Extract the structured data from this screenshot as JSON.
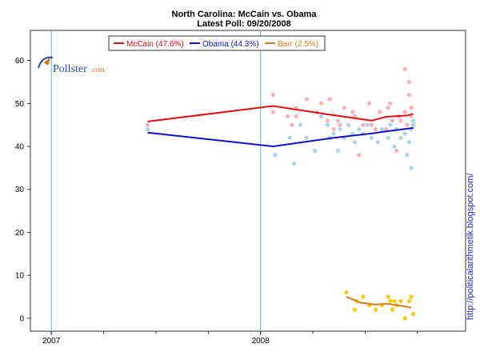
{
  "chart_data": {
    "type": "scatter",
    "title": "North Carolina: McCain vs. Obama",
    "subtitle": "Latest Poll: 09/20/2008",
    "xlabel": "",
    "ylabel": "",
    "xlim": [
      2006.9,
      2008.98
    ],
    "ylim": [
      -3,
      67
    ],
    "y_ticks": [
      0,
      10,
      20,
      30,
      40,
      50,
      60
    ],
    "x_ticks": [
      {
        "value": 2007.0,
        "label": "2007"
      },
      {
        "value": 2008.0,
        "label": "2008"
      }
    ],
    "vlines": [
      2007.0,
      2008.0
    ],
    "minor_x_ticks": [
      2007.0,
      2007.25,
      2007.5,
      2007.75,
      2008.0,
      2008.25,
      2008.5,
      2008.75
    ],
    "legend_placement": "top-center",
    "series": [
      {
        "name": "McCain",
        "legend_label": "McCain (47.6%)",
        "line_color": "#dd1111",
        "point_color": "#f4b3bb",
        "trend": {
          "x": [
            2007.46,
            2008.06,
            2008.33,
            2008.53,
            2008.6,
            2008.7,
            2008.73
          ],
          "y": [
            45.8,
            49.4,
            47.4,
            46.0,
            46.9,
            47.2,
            47.6
          ]
        },
        "points": {
          "x": [
            2007.46,
            2008.06,
            2008.06,
            2008.13,
            2008.15,
            2008.17,
            2008.17,
            2008.22,
            2008.27,
            2008.29,
            2008.32,
            2008.33,
            2008.35,
            2008.37,
            2008.38,
            2008.4,
            2008.42,
            2008.44,
            2008.45,
            2008.47,
            2008.49,
            2008.52,
            2008.53,
            2008.55,
            2008.57,
            2008.6,
            2008.61,
            2008.62,
            2008.63,
            2008.65,
            2008.66,
            2008.67,
            2008.69,
            2008.69,
            2008.7,
            2008.71,
            2008.71,
            2008.72,
            2008.72,
            2008.73,
            2008.73
          ],
          "y": [
            45,
            52,
            48,
            47,
            45,
            47,
            49,
            51,
            48,
            50,
            46,
            51,
            44,
            46,
            45,
            49,
            45,
            48,
            47,
            38,
            45,
            50,
            45,
            44,
            48,
            44,
            49,
            50,
            46,
            39,
            47,
            46,
            58,
            48,
            45,
            52,
            55,
            49,
            47,
            45,
            46
          ]
        }
      },
      {
        "name": "Obama",
        "legend_label": "Obama (44.3%)",
        "line_color": "#1111cc",
        "point_color": "#a9d5e6",
        "trend": {
          "x": [
            2007.46,
            2008.06,
            2008.35,
            2008.53,
            2008.6,
            2008.73
          ],
          "y": [
            43.2,
            40.0,
            42.0,
            43.0,
            43.5,
            44.3
          ]
        },
        "points": {
          "x": [
            2007.46,
            2008.07,
            2008.14,
            2008.16,
            2008.19,
            2008.22,
            2008.26,
            2008.29,
            2008.32,
            2008.33,
            2008.35,
            2008.37,
            2008.38,
            2008.4,
            2008.42,
            2008.44,
            2008.45,
            2008.47,
            2008.49,
            2008.51,
            2008.53,
            2008.56,
            2008.58,
            2008.61,
            2008.62,
            2008.64,
            2008.65,
            2008.67,
            2008.69,
            2008.7,
            2008.71,
            2008.72,
            2008.72,
            2008.73,
            2008.73
          ],
          "y": [
            44,
            38,
            42,
            36,
            45,
            42,
            39,
            47,
            45,
            42,
            43,
            39,
            44,
            42,
            45,
            43,
            41,
            44,
            43,
            45,
            42,
            41,
            44,
            42,
            45,
            40,
            44,
            42,
            43,
            38,
            41,
            35,
            44,
            45,
            46
          ]
        }
      },
      {
        "name": "Barr",
        "legend_label": "Barr (2.5%)",
        "line_color": "#e07b1a",
        "point_color": "#f2cc0e",
        "trend": {
          "x": [
            2008.41,
            2008.48,
            2008.55,
            2008.6,
            2008.66,
            2008.72
          ],
          "y": [
            5.0,
            3.6,
            3.2,
            3.4,
            3.0,
            2.5
          ]
        },
        "points": {
          "x": [
            2008.41,
            2008.45,
            2008.46,
            2008.49,
            2008.52,
            2008.55,
            2008.58,
            2008.61,
            2008.62,
            2008.63,
            2008.64,
            2008.65,
            2008.67,
            2008.69,
            2008.71,
            2008.72,
            2008.73
          ],
          "y": [
            6,
            2,
            4,
            5,
            3,
            2,
            3,
            5,
            4,
            2,
            4,
            3,
            4,
            0,
            4,
            5,
            1
          ]
        }
      }
    ]
  },
  "branding": {
    "logo_text": "Pollster",
    "logo_suffix": ".com",
    "side_url": "http://politicalarithmetik.blogspot.com/"
  }
}
